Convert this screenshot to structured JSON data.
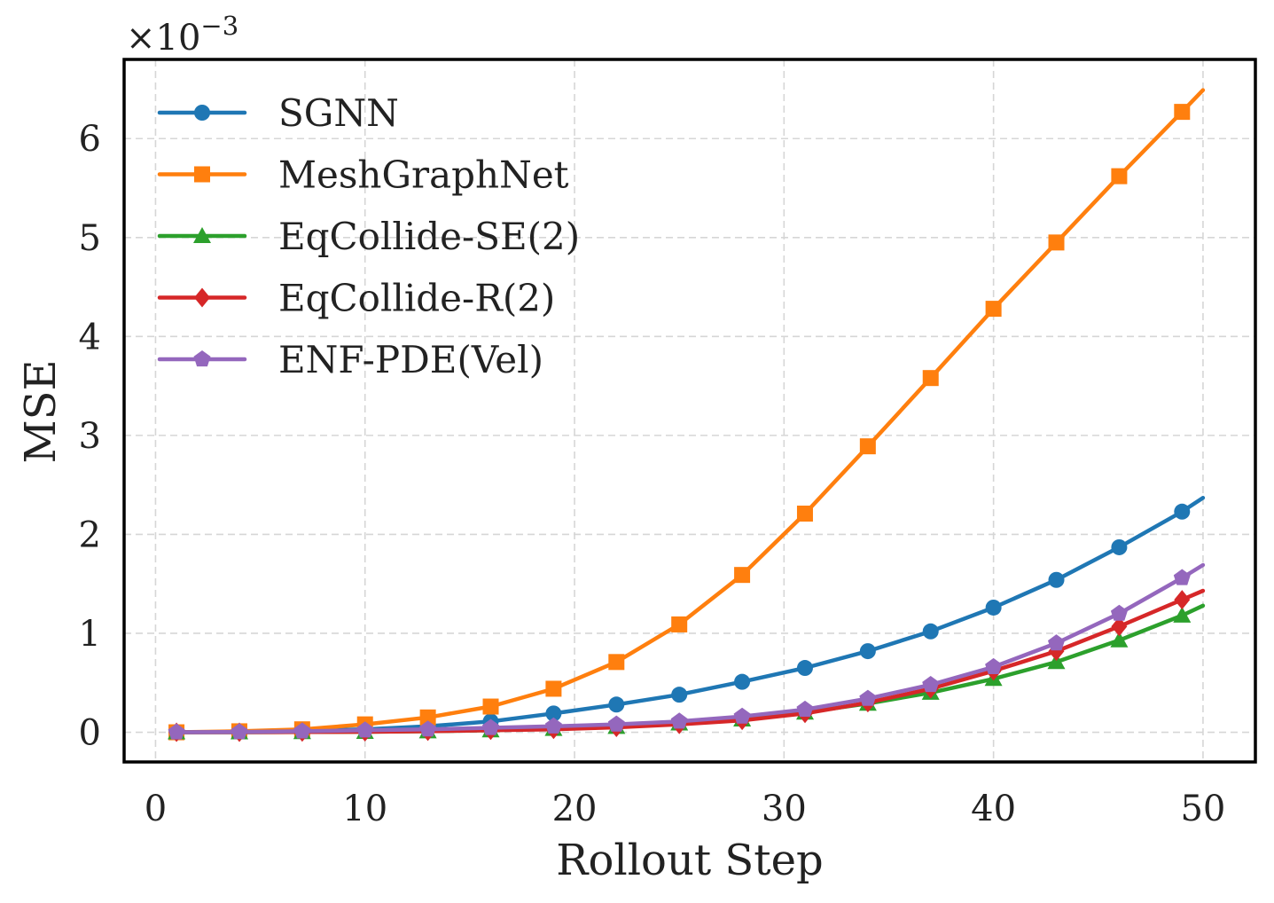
{
  "chart_data": {
    "type": "line",
    "title": "",
    "xlabel": "Rollout Step",
    "ylabel": "MSE",
    "y_scale_label": "×10",
    "y_scale_exponent": "−3",
    "xlim": [
      -1.5,
      52.5
    ],
    "ylim": [
      -0.3,
      6.8
    ],
    "grid": true,
    "legend_position": "top-left",
    "x_ticks": [
      0,
      10,
      20,
      30,
      40,
      50
    ],
    "x_tick_labels": [
      "0",
      "10",
      "20",
      "30",
      "40",
      "50"
    ],
    "y_ticks": [
      0,
      1,
      2,
      3,
      4,
      5,
      6
    ],
    "y_tick_labels": [
      "0",
      "1",
      "2",
      "3",
      "4",
      "5",
      "6"
    ],
    "x": [
      1,
      4,
      7,
      10,
      13,
      16,
      19,
      22,
      25,
      28,
      31,
      34,
      37,
      40,
      43,
      46,
      49,
      50
    ],
    "series": [
      {
        "name": "SGNN",
        "color": "#1f77b4",
        "marker": "circle",
        "values": [
          0.0,
          0.005,
          0.015,
          0.03,
          0.06,
          0.11,
          0.19,
          0.28,
          0.38,
          0.51,
          0.65,
          0.82,
          1.02,
          1.26,
          1.54,
          1.87,
          2.23,
          2.37
        ]
      },
      {
        "name": "MeshGraphNet",
        "color": "#ff7f0e",
        "marker": "square",
        "values": [
          0.0,
          0.01,
          0.03,
          0.08,
          0.15,
          0.26,
          0.44,
          0.71,
          1.09,
          1.59,
          2.21,
          2.89,
          3.58,
          4.28,
          4.95,
          5.62,
          6.27,
          6.49
        ]
      },
      {
        "name": "EqCollide-SE(2)",
        "color": "#2ca02c",
        "marker": "triangle",
        "values": [
          0.0,
          0.0,
          0.002,
          0.005,
          0.01,
          0.02,
          0.035,
          0.055,
          0.09,
          0.13,
          0.2,
          0.29,
          0.4,
          0.54,
          0.71,
          0.93,
          1.18,
          1.28
        ]
      },
      {
        "name": "EqCollide-R(2)",
        "color": "#d62728",
        "marker": "diamond",
        "values": [
          0.0,
          0.0,
          0.002,
          0.005,
          0.01,
          0.02,
          0.03,
          0.05,
          0.08,
          0.12,
          0.19,
          0.3,
          0.44,
          0.62,
          0.82,
          1.07,
          1.34,
          1.43
        ]
      },
      {
        "name": "ENF-PDE(Vel)",
        "color": "#9467bd",
        "marker": "pentagon",
        "values": [
          0.0,
          0.003,
          0.01,
          0.02,
          0.03,
          0.045,
          0.06,
          0.08,
          0.11,
          0.16,
          0.23,
          0.34,
          0.48,
          0.66,
          0.9,
          1.2,
          1.56,
          1.69
        ]
      }
    ]
  }
}
